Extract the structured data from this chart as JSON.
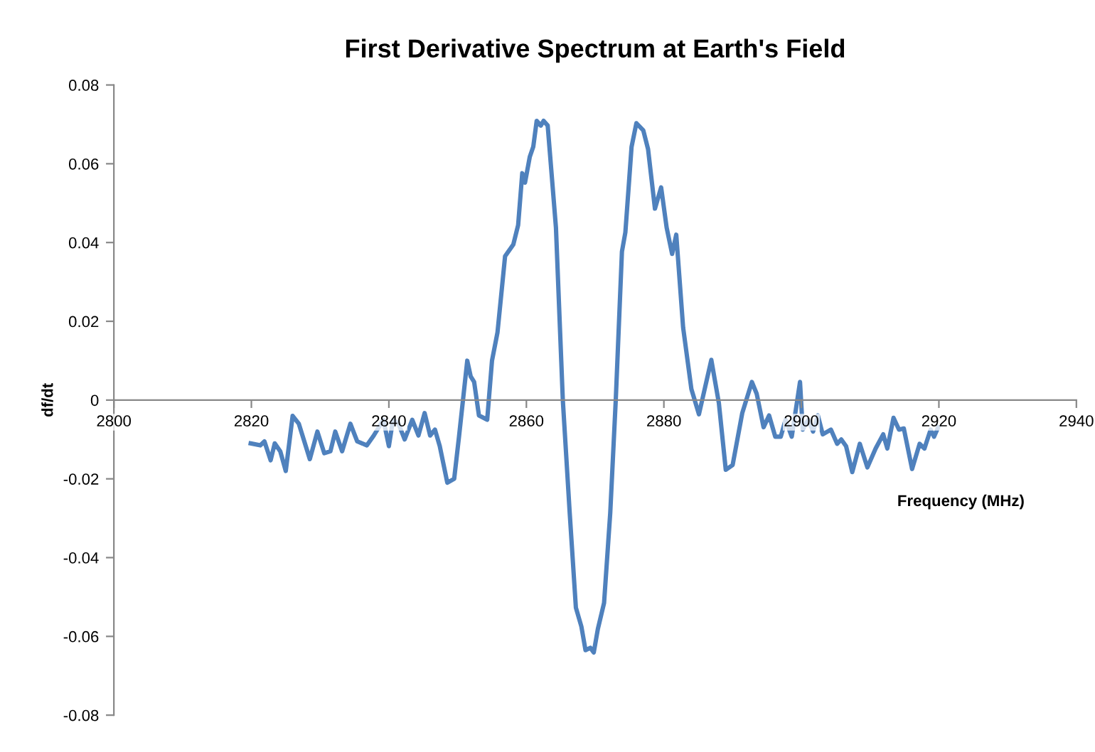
{
  "chart_data": {
    "type": "line",
    "title": "First Derivative Spectrum at Earth's Field",
    "xlabel": "Frequency (MHz)",
    "ylabel": "df/dt",
    "xlim": [
      2800,
      2940
    ],
    "xticks": [
      2800,
      2820,
      2840,
      2860,
      2880,
      2900,
      2920,
      2940
    ],
    "ylim": [
      -0.08,
      0.08
    ],
    "yticks": [
      -0.08,
      -0.06,
      -0.04,
      -0.02,
      0,
      0.02,
      0.04,
      0.06,
      0.08
    ],
    "grid": false,
    "legend": false,
    "marker": "none",
    "line_style": "solid",
    "series": [
      {
        "color": "#4f81bd",
        "x": [
          2819.9,
          2821.3,
          2821.9,
          2822.8,
          2823.4,
          2824.2,
          2825.0,
          2826.0,
          2826.9,
          2828.5,
          2829.6,
          2830.6,
          2831.5,
          2832.2,
          2833.2,
          2834.4,
          2835.4,
          2836.8,
          2837.8,
          2839.2,
          2840.0,
          2840.6,
          2841.4,
          2842.3,
          2843.4,
          2844.3,
          2845.2,
          2846.0,
          2846.7,
          2847.4,
          2848.5,
          2849.5,
          2850.2,
          2851.4,
          2851.9,
          2852.4,
          2853.1,
          2854.3,
          2855.0,
          2855.8,
          2856.9,
          2858.1,
          2858.8,
          2859.4,
          2859.8,
          2860.5,
          2861.0,
          2861.5,
          2862.1,
          2862.5,
          2863.1,
          2864.3,
          2865.3,
          2866.3,
          2867.2,
          2868.0,
          2868.6,
          2869.3,
          2869.8,
          2870.4,
          2871.3,
          2872.2,
          2873.0,
          2873.9,
          2874.4,
          2875.3,
          2876.0,
          2877.0,
          2877.7,
          2878.7,
          2879.6,
          2880.4,
          2881.2,
          2881.8,
          2882.8,
          2884.0,
          2885.1,
          2886.9,
          2888.0,
          2889.0,
          2890.0,
          2891.4,
          2892.8,
          2893.5,
          2894.5,
          2895.3,
          2896.2,
          2897.0,
          2897.7,
          2898.6,
          2899.8,
          2900.2,
          2901.0,
          2901.7,
          2902.4,
          2903.1,
          2904.3,
          2905.2,
          2905.8,
          2906.5,
          2907.4,
          2908.5,
          2909.6,
          2910.8,
          2911.9,
          2912.5,
          2913.4,
          2914.2,
          2914.9,
          2916.1,
          2917.2,
          2917.9,
          2918.8,
          2919.3,
          2919.9
        ],
        "values": [
          -0.011,
          -0.0115,
          -0.0105,
          -0.0153,
          -0.011,
          -0.013,
          -0.018,
          -0.004,
          -0.006,
          -0.015,
          -0.008,
          -0.0135,
          -0.013,
          -0.008,
          -0.013,
          -0.006,
          -0.0105,
          -0.0115,
          -0.009,
          -0.005,
          -0.0117,
          -0.005,
          -0.006,
          -0.01,
          -0.005,
          -0.009,
          -0.0033,
          -0.009,
          -0.0075,
          -0.0117,
          -0.021,
          -0.02,
          -0.0093,
          0.01,
          0.006,
          0.0046,
          -0.0039,
          -0.005,
          0.01,
          0.0172,
          0.0365,
          0.0395,
          0.0444,
          0.0576,
          0.0552,
          0.0618,
          0.0643,
          0.0709,
          0.0697,
          0.0709,
          0.0697,
          0.0438,
          0.0,
          -0.0286,
          -0.0527,
          -0.0575,
          -0.0635,
          -0.0629,
          -0.0641,
          -0.0581,
          -0.0515,
          -0.0286,
          0.0,
          0.0377,
          0.0426,
          0.0643,
          0.0703,
          0.0685,
          0.0637,
          0.0486,
          0.054,
          0.0438,
          0.0371,
          0.042,
          0.0184,
          0.0028,
          -0.0036,
          0.0102,
          -0.0008,
          -0.0177,
          -0.0165,
          -0.0033,
          0.0046,
          0.0016,
          -0.0069,
          -0.0039,
          -0.0093,
          -0.0093,
          -0.005,
          -0.0093,
          0.0046,
          -0.0075,
          -0.005,
          -0.008,
          -0.0039,
          -0.0087,
          -0.0075,
          -0.0111,
          -0.01,
          -0.0117,
          -0.0183,
          -0.0111,
          -0.0171,
          -0.0123,
          -0.0087,
          -0.0123,
          -0.0045,
          -0.0075,
          -0.0072,
          -0.0175,
          -0.0111,
          -0.0123,
          -0.0075,
          -0.0093,
          -0.0069
        ]
      }
    ]
  }
}
